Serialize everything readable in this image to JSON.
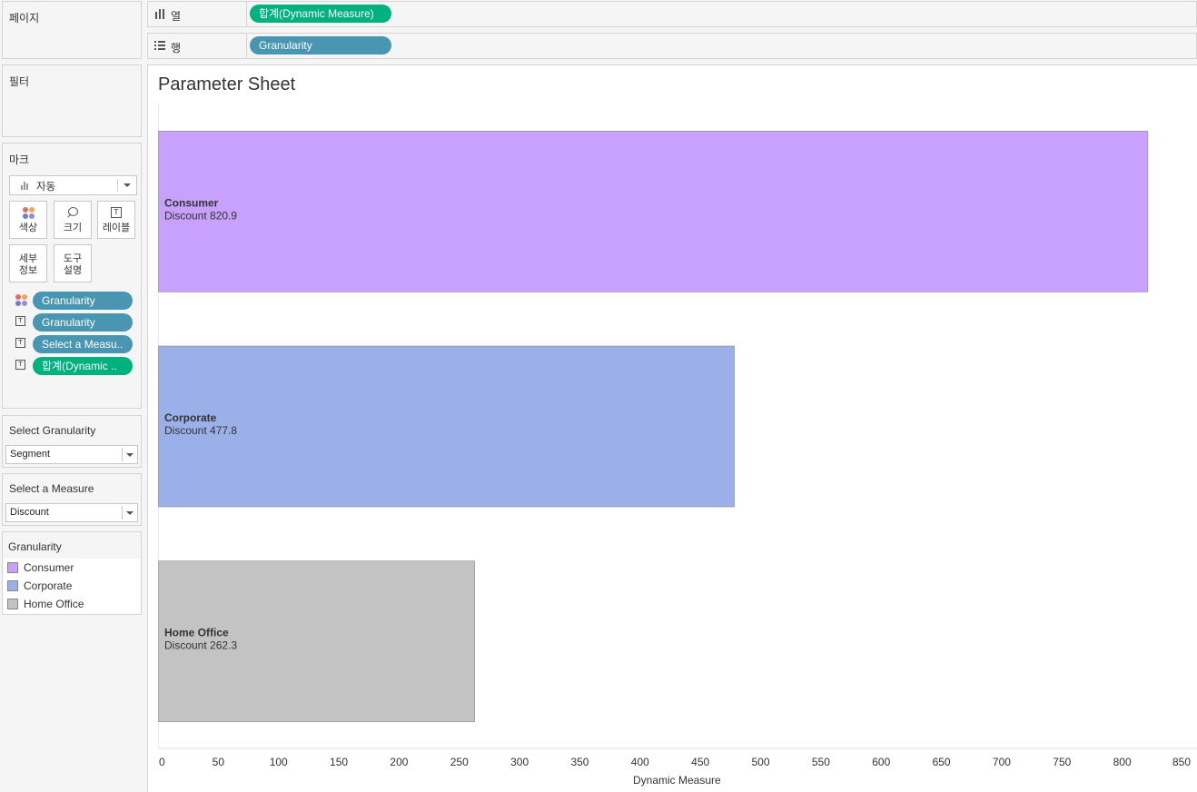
{
  "shelves": {
    "pages_label": "페이지",
    "filters_label": "필터",
    "columns_label": "열",
    "columns_pill": "합계(Dynamic Measure)",
    "rows_label": "행",
    "rows_pill": "Granularity"
  },
  "marks": {
    "title": "마크",
    "mark_type": "자동",
    "buttons": {
      "color": "색상",
      "size": "크기",
      "label": "레이블",
      "detail_line1": "세부",
      "detail_line2": "정보",
      "tooltip_line1": "도구",
      "tooltip_line2": "설명"
    },
    "pills": [
      {
        "icon": "color-dots-icon",
        "text": "Granularity",
        "color": "#4996b2"
      },
      {
        "icon": "text-icon",
        "text": "Granularity",
        "color": "#4996b2"
      },
      {
        "icon": "text-icon",
        "text": "Select a Measu..",
        "color": "#4996b2"
      },
      {
        "icon": "text-icon",
        "text": "합계(Dynamic ..",
        "color": "#00b180"
      }
    ]
  },
  "parameters": {
    "granularity": {
      "title": "Select Granularity",
      "value": "Segment"
    },
    "measure": {
      "title": "Select a Measure",
      "value": "Discount"
    }
  },
  "legend": {
    "title": "Granularity",
    "items": [
      {
        "label": "Consumer",
        "color": "#c7a1fd"
      },
      {
        "label": "Corporate",
        "color": "#9bb0e9"
      },
      {
        "label": "Home Office",
        "color": "#c3c3c3"
      }
    ]
  },
  "sheet": {
    "title": "Parameter Sheet"
  },
  "chart_data": {
    "type": "bar",
    "orientation": "horizontal",
    "title": "Parameter Sheet",
    "xlabel": "Dynamic Measure",
    "ylabel": "",
    "xlim": [
      0,
      850
    ],
    "ticks": [
      0,
      50,
      100,
      150,
      200,
      250,
      300,
      350,
      400,
      450,
      500,
      550,
      600,
      650,
      700,
      750,
      800,
      850
    ],
    "categories": [
      "Consumer",
      "Corporate",
      "Home Office"
    ],
    "values": [
      820.9,
      477.8,
      262.3
    ],
    "measure_label": "Discount",
    "value_labels": [
      "Discount 820.9",
      "Discount 477.8",
      "Discount 262.3"
    ],
    "colors": [
      "#c7a1fd",
      "#9bb0e9",
      "#c3c3c3"
    ],
    "grid": false,
    "legend": "left-panel"
  }
}
